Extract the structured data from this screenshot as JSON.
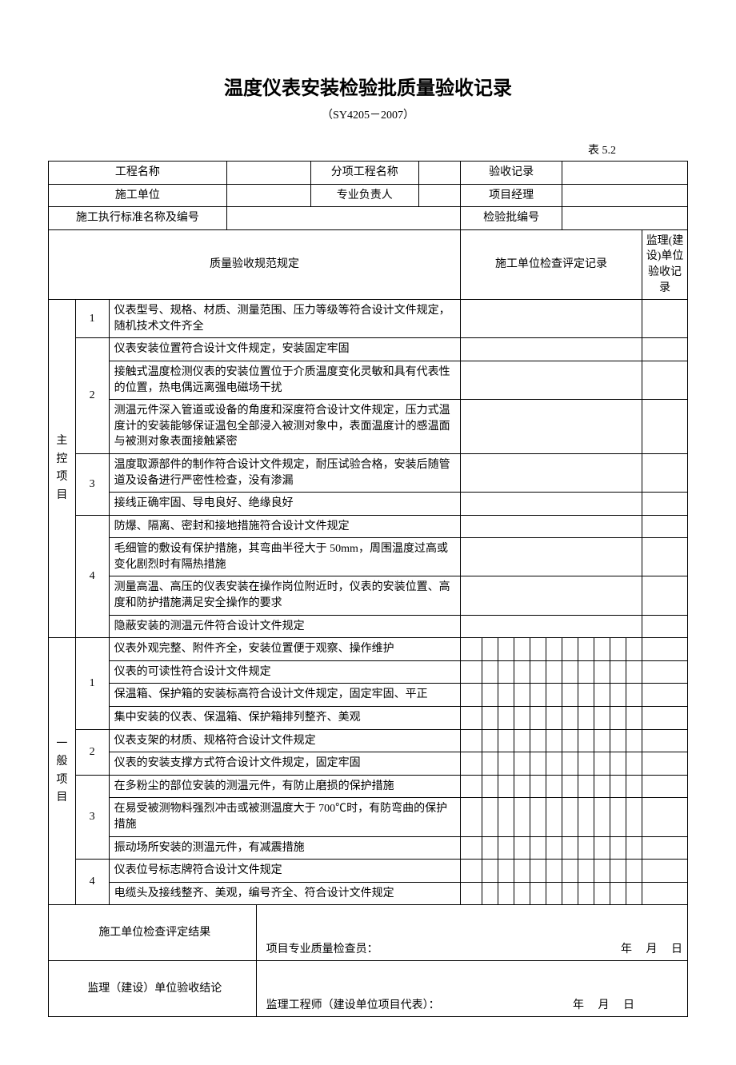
{
  "title": "温度仪表安装检验批质量验收记录",
  "subtitle": "（SY4205－2007）",
  "table_label": "表 5.2",
  "header": {
    "project_name_label": "工程名称",
    "sub_project_label": "分项工程名称",
    "acceptance_record_label": "验收记录",
    "construction_unit_label": "施工单位",
    "pro_leader_label": "专业负责人",
    "pm_label": "项目经理",
    "standard_label": "施工执行标准名称及编号",
    "batch_no_label": "检验批编号",
    "quality_spec_label": "质量验收规范规定",
    "check_record_label": "施工单位检查评定记录",
    "supervisor_label": "监理(建设)单位验收记录"
  },
  "main_control_label": "主控项目",
  "general_label": "一般项目",
  "main": {
    "r1": "仪表型号、规格、材质、测量范围、压力等级等符合设计文件规定，随机技术文件齐全",
    "r2a": "仪表安装位置符合设计文件规定，安装固定牢固",
    "r2b": "接触式温度检测仪表的安装位置位于介质温度变化灵敏和具有代表性的位置，热电偶远离强电磁场干扰",
    "r2c": "测温元件深入管道或设备的角度和深度符合设计文件规定，压力式温度计的安装能够保证温包全部浸入被测对象中，表面温度计的感温面与被测对象表面接触紧密",
    "r3a": "温度取源部件的制作符合设计文件规定，耐压试验合格，安装后随管道及设备进行严密性检查，没有渗漏",
    "r3b": "接线正确牢固、导电良好、绝缘良好",
    "r4a": "防爆、隔离、密封和接地措施符合设计文件规定",
    "r4b": "毛细管的敷设有保护措施，其弯曲半径大于 50mm，周围温度过高或变化剧烈时有隔热措施",
    "r4c": "测量高温、高压的仪表安装在操作岗位附近时，仪表的安装位置、高度和防护措施满足安全操作的要求",
    "r4d": "隐蔽安装的测温元件符合设计文件规定"
  },
  "gen": {
    "r1a": "仪表外观完整、附件齐全，安装位置便于观察、操作维护",
    "r1b": "仪表的可读性符合设计文件规定",
    "r1c": "保温箱、保护箱的安装标高符合设计文件规定，固定牢固、平正",
    "r1d": "集中安装的仪表、保温箱、保护箱排列整齐、美观",
    "r2a": "仪表支架的材质、规格符合设计文件规定",
    "r2b": "仪表的安装支撑方式符合设计文件规定，固定牢固",
    "r3a": "在多粉尘的部位安装的测温元件，有防止磨损的保护措施",
    "r3b": "在易受被测物料强烈冲击或被测温度大于 700℃时，有防弯曲的保护措施",
    "r3c": "振动场所安装的测温元件，有减震措施",
    "r4a": "仪表位号标志牌符合设计文件规定",
    "r4b": "电缆头及接线整齐、美观，编号齐全、符合设计文件规定"
  },
  "footer": {
    "construction_result_label": "施工单位检查评定结果",
    "inspector_label": "项目专业质量检查员：",
    "supervisor_result_label": "监理（建设）单位验收结论",
    "engineer_label": "监理工程师（建设单位项目代表）：",
    "year": "年",
    "month": "月",
    "day": "日"
  },
  "nums": {
    "n1": "1",
    "n2": "2",
    "n3": "3",
    "n4": "4"
  }
}
